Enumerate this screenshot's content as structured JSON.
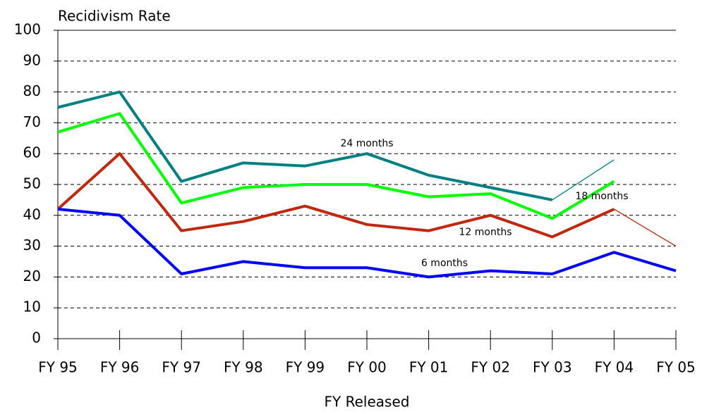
{
  "chart_data": {
    "type": "line",
    "y_label": "Recidivism Rate",
    "x_label": "FY Released",
    "categories": [
      "FY 95",
      "FY 96",
      "FY 97",
      "FY 98",
      "FY 99",
      "FY 00",
      "FY 01",
      "FY 02",
      "FY 03",
      "FY 04",
      "FY 05"
    ],
    "series": [
      {
        "name": "24 months",
        "color": "#008080",
        "values": [
          75,
          80,
          51,
          57,
          56,
          60,
          53,
          49,
          45,
          58,
          null
        ],
        "thin_last_segment": true
      },
      {
        "name": "18 months",
        "color": "#00ff00",
        "values": [
          67,
          73,
          44,
          49,
          50,
          50,
          46,
          47,
          39,
          51,
          null
        ],
        "thin_last_segment": false
      },
      {
        "name": "12 months",
        "color": "#c0280d",
        "values": [
          42,
          60,
          35,
          38,
          43,
          37,
          35,
          40,
          33,
          42,
          30
        ],
        "thin_last_segment": true
      },
      {
        "name": "6 months",
        "color": "#0000ff",
        "values": [
          42,
          40,
          21,
          25,
          23,
          23,
          20,
          22,
          21,
          28,
          22
        ],
        "thin_last_segment": false
      }
    ],
    "ylim": [
      0,
      100
    ],
    "yticks": [
      0,
      10,
      20,
      30,
      40,
      50,
      60,
      70,
      80,
      90,
      100
    ],
    "grid": true
  }
}
